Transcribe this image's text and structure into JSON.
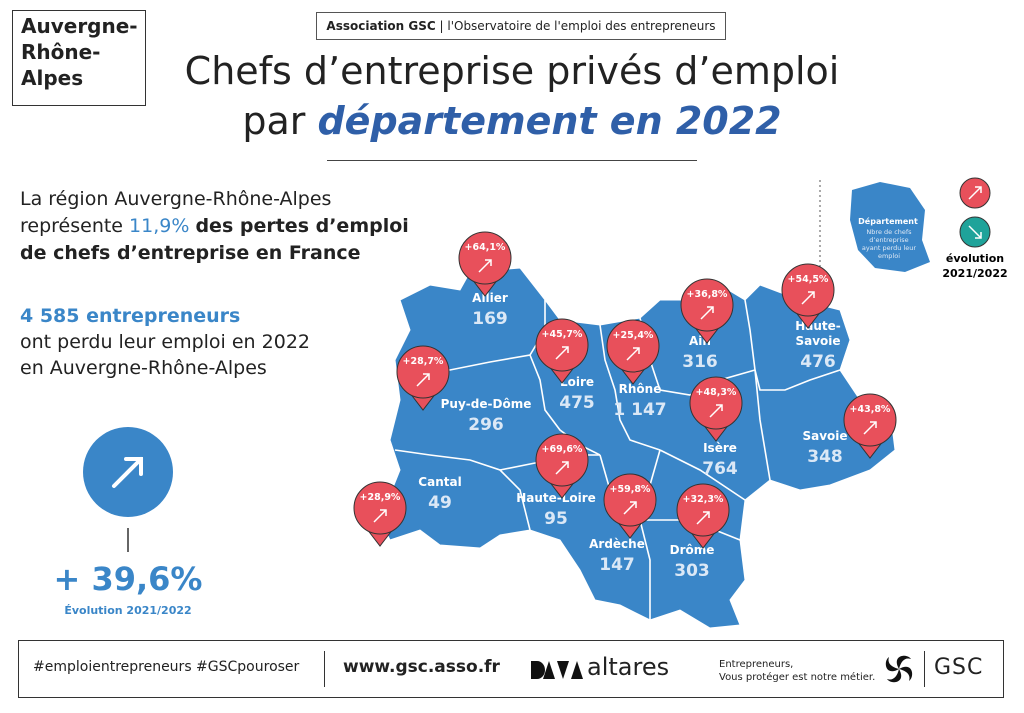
{
  "region_box": {
    "lines": [
      "Auvergne-",
      "Rhône-",
      "Alpes"
    ]
  },
  "header": {
    "org": "Association GSC",
    "tagline": "l'Observatoire de l'emploi des entrepreneurs"
  },
  "title": {
    "line1": "Chefs d’entreprise privés d’emploi",
    "line2_start": "par",
    "line2_emphasis": "département en 2022"
  },
  "intro": {
    "line1": "La région Auvergne-Rhône-Alpes",
    "line2_start": "représente",
    "highlight": "11,9%",
    "line2_end": "des pertes d’emploi",
    "line3": "de chefs d’entreprise en France"
  },
  "stat": {
    "headline": "4 585 entrepreneurs",
    "line2": "ont perdu leur emploi en 2022",
    "line3": "en Auvergne-Rhône-Alpes"
  },
  "total": {
    "value": "+ 39,6%",
    "label": "Évolution 2021/2022"
  },
  "legend": {
    "title": "Département",
    "desc": "Nbre de chefs d’entreprise ayant perdu leur emploi",
    "evolution_lines": [
      "évolution",
      "2021/2022"
    ]
  },
  "departments": [
    {
      "name_lines": [
        "Allier"
      ],
      "count": "169",
      "evolution": "+64,1%"
    },
    {
      "name_lines": [
        "Loire"
      ],
      "count": "475",
      "evolution": "+45,7%"
    },
    {
      "name_lines": [
        "Rhône"
      ],
      "count": "1 147",
      "evolution": "+25,4%"
    },
    {
      "name_lines": [
        "Ain"
      ],
      "count": "316",
      "evolution": "+36,8%"
    },
    {
      "name_lines": [
        "Haute-",
        "Savoie"
      ],
      "count": "476",
      "evolution": "+54,5%"
    },
    {
      "name_lines": [
        "Puy-de-Dôme"
      ],
      "count": "296",
      "evolution": "+28,7%"
    },
    {
      "name_lines": [
        "Isère"
      ],
      "count": "764",
      "evolution": "+48,3%"
    },
    {
      "name_lines": [
        "Savoie"
      ],
      "count": "348",
      "evolution": "+43,8%"
    },
    {
      "name_lines": [
        "Cantal"
      ],
      "count": "49",
      "evolution": "+28,9%"
    },
    {
      "name_lines": [
        "Haute-Loire"
      ],
      "count": "95",
      "evolution": "+69,6%"
    },
    {
      "name_lines": [
        "Ardèche"
      ],
      "count": "147",
      "evolution": "+59,8%"
    },
    {
      "name_lines": [
        "Drôme"
      ],
      "count": "303",
      "evolution": "+32,3%"
    }
  ],
  "footer": {
    "hashtags": "#emploientrepreneurs #GSCpouroser",
    "url": "www.gsc.asso.fr",
    "partner": "altares",
    "slogan1": "Entrepreneurs,",
    "slogan2": "Vous protéger est notre métier.",
    "brand": "GSC"
  }
}
